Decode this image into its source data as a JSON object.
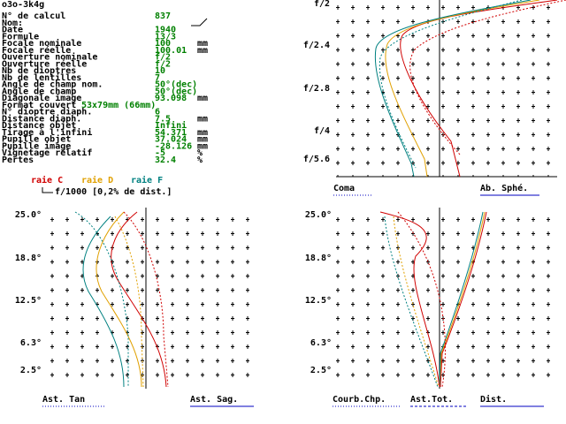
{
  "window_title": "o3o-3k4g",
  "params": [
    {
      "label": "N° de calcul",
      "value": "837"
    },
    {
      "label": "Nom:"
    },
    {
      "label": "Date",
      "value": "1940"
    },
    {
      "label": "Formule",
      "value": "13/3"
    },
    {
      "label": "Focale nominale",
      "value": "100",
      "unit": "mm"
    },
    {
      "label": "Focale réelle",
      "value": "100.01",
      "unit": "mm"
    },
    {
      "label": "Ouverture nominale",
      "value": "f/2"
    },
    {
      "label": "Ouverture réelle",
      "value": "f/2"
    },
    {
      "label": "Nb de dioptres",
      "value": "10"
    },
    {
      "label": "Nb de lentilles",
      "value": "7"
    },
    {
      "label": "Angle de champ nom.",
      "value": "50°(dec)"
    },
    {
      "label": "Angle de champ",
      "value": "50°(dec)"
    },
    {
      "label": "Diagonale image",
      "value": "93.098",
      "unit": "mm"
    }
  ],
  "format": {
    "label": "Format couvert",
    "value": "53x79mm (66mm)"
  },
  "params2": [
    {
      "label": "N° dioptre diaph.",
      "value": "6"
    },
    {
      "label": "Distance diaph.",
      "value": "7.5",
      "unit": "mm"
    },
    {
      "label": "Distance objet",
      "value": "Infini"
    },
    {
      "label": "Tirage à l'infini",
      "value": "54.371",
      "unit": "mm"
    },
    {
      "label": "Pupille objet",
      "value": "37.024",
      "unit": "mm"
    },
    {
      "label": "Pupille image",
      "value": "-28.126",
      "unit": "mm"
    },
    {
      "label": "Vignetage relatif",
      "value": "-5",
      "unit": "%"
    },
    {
      "label": "Pertes",
      "value": "32.4",
      "unit": "%"
    }
  ],
  "legend": {
    "c": "raie C",
    "d": "raie D",
    "f": "raie F",
    "scale": "f/1000 [0,2% de dist.]"
  },
  "coma_plot": {
    "ticks": [
      "f/2",
      "f/2.4",
      "f/2.8",
      "f/4",
      "f/5.6"
    ],
    "left_label": "Coma",
    "right_label": "Ab. Sphé."
  },
  "ast_plot": {
    "ticks": [
      "25.0°",
      "18.8°",
      "12.5°",
      "6.3°",
      "2.5°"
    ],
    "left_label": "Ast. Tan",
    "right_label": "Ast. Sag."
  },
  "dist_plot": {
    "ticks": [
      "25.0°",
      "18.8°",
      "12.5°",
      "6.3°",
      "2.5°"
    ],
    "labels": [
      "Courb.Chp.",
      "Ast.Tot.",
      "Dist."
    ]
  }
}
